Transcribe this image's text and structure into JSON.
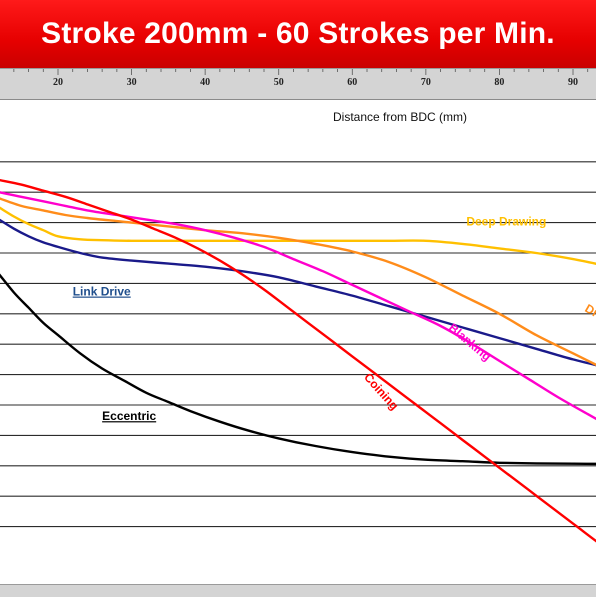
{
  "chart_data": {
    "type": "line",
    "title": "Stroke 200mm - 60 Strokes per Min.",
    "xlabel": "Distance from BDC (mm)",
    "ylabel": "",
    "xlim": [
      12,
      95
    ],
    "ylim": [
      0,
      13
    ],
    "x_ticks": [
      20,
      30,
      40,
      50,
      60,
      70,
      80,
      90
    ],
    "y_gridlines": [
      1,
      2,
      3,
      4,
      5,
      6,
      7,
      8,
      9,
      10,
      11,
      12,
      13
    ],
    "grid": true,
    "series": [
      {
        "name": "Eccentric",
        "color": "#000000",
        "label_underlined": true,
        "x": [
          12,
          14,
          16,
          18,
          20,
          23,
          26,
          29,
          32,
          35,
          38,
          42,
          46,
          50,
          55,
          60,
          65,
          70,
          75,
          80,
          85,
          90,
          95
        ],
        "y": [
          9.3,
          8.7,
          8.2,
          7.7,
          7.3,
          6.7,
          6.2,
          5.8,
          5.4,
          5.1,
          4.8,
          4.45,
          4.15,
          3.9,
          3.65,
          3.45,
          3.3,
          3.2,
          3.15,
          3.1,
          3.08,
          3.07,
          3.06
        ]
      },
      {
        "name": "Link Drive",
        "color": "#1a1a8a",
        "label_underlined": true,
        "x": [
          12,
          14,
          16,
          18,
          20,
          23,
          26,
          30,
          35,
          40,
          45,
          50,
          55,
          60,
          65,
          70,
          75,
          80,
          85,
          90,
          95
        ],
        "y": [
          11.1,
          10.8,
          10.55,
          10.35,
          10.2,
          10.0,
          9.85,
          9.75,
          9.65,
          9.55,
          9.4,
          9.2,
          8.9,
          8.6,
          8.25,
          7.9,
          7.55,
          7.2,
          6.85,
          6.5,
          6.2
        ]
      },
      {
        "name": "Deep Drawing",
        "color": "#ffc000",
        "label_underlined": false,
        "x": [
          12,
          14,
          16,
          18,
          20,
          23,
          26,
          30,
          35,
          40,
          45,
          50,
          55,
          60,
          65,
          70,
          75,
          80,
          85,
          90,
          95
        ],
        "y": [
          11.5,
          11.2,
          10.95,
          10.75,
          10.55,
          10.45,
          10.42,
          10.4,
          10.4,
          10.4,
          10.4,
          10.4,
          10.4,
          10.4,
          10.4,
          10.4,
          10.3,
          10.15,
          10.0,
          9.8,
          9.55
        ]
      },
      {
        "name": "Drawing",
        "color": "#ff8c1a",
        "label_underlined": false,
        "x": [
          12,
          15,
          18,
          21,
          24,
          28,
          32,
          36,
          40,
          45,
          50,
          55,
          60,
          65,
          70,
          75,
          80,
          85,
          90,
          95
        ],
        "y": [
          11.8,
          11.55,
          11.4,
          11.25,
          11.15,
          11.05,
          10.95,
          10.85,
          10.75,
          10.65,
          10.5,
          10.3,
          10.05,
          9.7,
          9.2,
          8.6,
          8.0,
          7.3,
          6.7,
          6.1
        ]
      },
      {
        "name": "Blanking",
        "color": "#ff00cc",
        "label_underlined": false,
        "x": [
          12,
          15,
          18,
          21,
          24,
          28,
          32,
          36,
          40,
          44,
          48,
          52,
          56,
          60,
          64,
          68,
          72,
          76,
          80,
          84,
          88,
          92,
          95
        ],
        "y": [
          12.0,
          11.85,
          11.7,
          11.55,
          11.4,
          11.25,
          11.1,
          10.95,
          10.75,
          10.5,
          10.2,
          9.8,
          9.4,
          8.95,
          8.5,
          8.05,
          7.6,
          7.05,
          6.45,
          5.85,
          5.25,
          4.7,
          4.3
        ]
      },
      {
        "name": "Coining",
        "color": "#ff0000",
        "label_underlined": false,
        "x": [
          12,
          15,
          18,
          21,
          24,
          27,
          30,
          33,
          36,
          39,
          42,
          45,
          48,
          51,
          54,
          57,
          60,
          63,
          66,
          69,
          72,
          75,
          78,
          81,
          84,
          87,
          90,
          93,
          95
        ],
        "y": [
          12.4,
          12.25,
          12.05,
          11.85,
          11.6,
          11.35,
          11.1,
          10.8,
          10.5,
          10.15,
          9.75,
          9.3,
          8.8,
          8.25,
          7.7,
          7.15,
          6.6,
          6.05,
          5.5,
          4.95,
          4.4,
          3.85,
          3.3,
          2.75,
          2.2,
          1.65,
          1.1,
          0.55,
          0.2
        ]
      }
    ],
    "annotations": [
      {
        "text": "Eccentric",
        "series": "Eccentric",
        "x": 26,
        "y": 4.5,
        "rotate": 0,
        "color": "#000000",
        "underline": true
      },
      {
        "text": "Link Drive",
        "series": "Link Drive",
        "x": 22,
        "y": 8.6,
        "rotate": 0,
        "color": "#1f4e8c",
        "underline": true
      },
      {
        "text": "Deep Drawing",
        "series": "Deep Drawing",
        "x": 75.5,
        "y": 10.9,
        "rotate": 0,
        "color": "#ffc000",
        "underline": false
      },
      {
        "text": "Dra",
        "series": "Drawing",
        "x": 91.5,
        "y": 8.1,
        "rotate": 30,
        "color": "#ff8c1a",
        "underline": false
      },
      {
        "text": "Blanking",
        "series": "Blanking",
        "x": 73,
        "y": 7.5,
        "rotate": 40,
        "color": "#ff00cc",
        "underline": false
      },
      {
        "text": "Coining",
        "series": "Coining",
        "x": 61.5,
        "y": 5.9,
        "rotate": 48,
        "color": "#ff0000",
        "underline": false
      }
    ]
  }
}
